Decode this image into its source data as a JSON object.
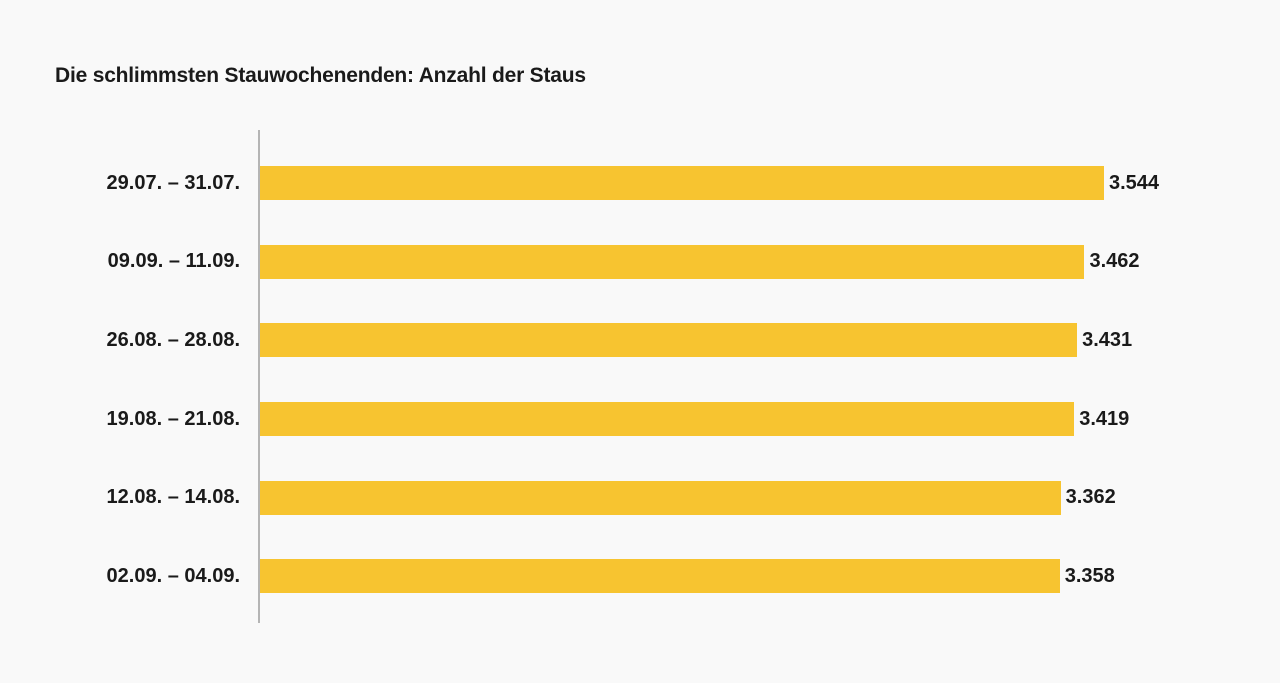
{
  "page": {
    "background_color": "#f9f9f9"
  },
  "chart_data": {
    "type": "bar",
    "orientation": "horizontal",
    "title": "Die schlimmsten Stauwochenenden: Anzahl der Staus",
    "categories": [
      "29.07. – 31.07.",
      "09.09. – 11.09.",
      "26.08. – 28.08.",
      "19.08. – 21.08.",
      "12.08. – 14.08.",
      "02.09. – 04.09."
    ],
    "values": [
      3544,
      3462,
      3431,
      3419,
      3362,
      3358
    ],
    "value_labels": [
      "3.544",
      "3.462",
      "3.431",
      "3.419",
      "3.362",
      "3.358"
    ],
    "xlabel": "",
    "ylabel": "",
    "xlim": [
      0,
      3544
    ],
    "grid": false,
    "legend": false,
    "bar_color": "#f7c430",
    "axis_line_color": "#b5b5b5",
    "text_color": "#1a1a1a"
  }
}
